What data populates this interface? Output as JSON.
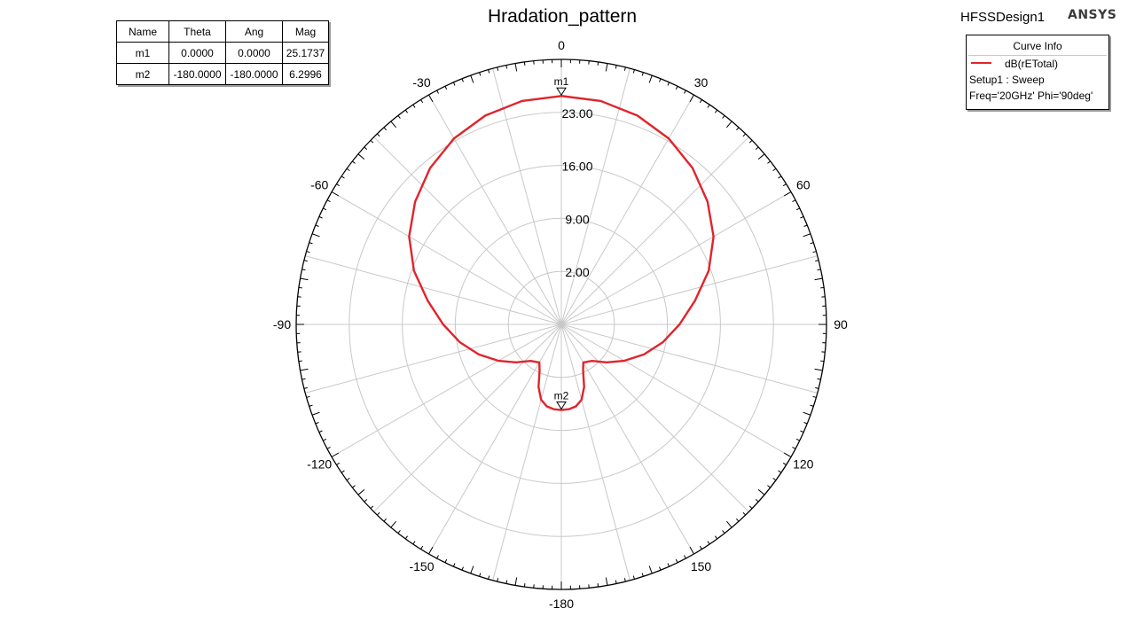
{
  "design": {
    "name": "HFSSDesign1",
    "brand": "ANSYS"
  },
  "marker_table": {
    "headers": [
      "Name",
      "Theta",
      "Ang",
      "Mag"
    ],
    "rows": [
      [
        "m1",
        "0.0000",
        "0.0000",
        "25.1737"
      ],
      [
        "m2",
        "-180.0000",
        "-180.0000",
        "6.2996"
      ]
    ]
  },
  "curve_info": {
    "title": "Curve Info",
    "legend": "dB(rETotal)",
    "setup": "Setup1 : Sweep",
    "params": "Freq='20GHz' Phi='90deg'"
  },
  "colors": {
    "trace": "#e0242c",
    "grid": "#c8c8c8",
    "axis": "#000000"
  },
  "chart_data": {
    "type": "polar",
    "title": "Hradation_pattern",
    "angle_unit": "deg",
    "angle_zero": "top",
    "angle_direction": "clockwise",
    "angle_ticks": [
      0,
      30,
      60,
      90,
      120,
      150,
      -180,
      -150,
      -120,
      -90,
      -60,
      -30
    ],
    "radial_range": [
      -5,
      30
    ],
    "radial_ticks": [
      2.0,
      9.0,
      16.0,
      23.0
    ],
    "radial_tick_labels": [
      "2.00",
      "9.00",
      "16.00",
      "23.00"
    ],
    "grid": true,
    "series": [
      {
        "name": "dB(rETotal)",
        "color": "#e0242c",
        "theta": [
          0,
          10,
          20,
          30,
          40,
          50,
          60,
          70,
          80,
          90,
          100,
          110,
          120,
          130,
          140,
          150,
          155,
          160,
          165,
          170,
          175,
          180,
          185,
          190,
          195,
          200,
          205,
          210,
          220,
          230,
          240,
          250,
          260,
          270,
          280,
          290,
          300,
          310,
          320,
          330,
          340,
          350
        ],
        "r": [
          25.17,
          24.96,
          24.35,
          23.35,
          21.95,
          20.2,
          18.2,
          15.7,
          12.9,
          10.6,
          8.6,
          6.6,
          4.6,
          2.8,
          1.3,
          0.8,
          1.8,
          3.8,
          5.3,
          6.0,
          6.25,
          6.3,
          6.25,
          6.0,
          5.3,
          3.8,
          1.8,
          0.8,
          1.3,
          2.8,
          4.6,
          6.6,
          8.6,
          10.6,
          12.9,
          15.7,
          18.2,
          20.2,
          21.95,
          23.35,
          24.35,
          24.96
        ]
      }
    ],
    "markers": [
      {
        "name": "m1",
        "theta": 0.0,
        "mag": 25.1737
      },
      {
        "name": "m2",
        "theta": -180.0,
        "mag": 6.2996
      }
    ]
  }
}
